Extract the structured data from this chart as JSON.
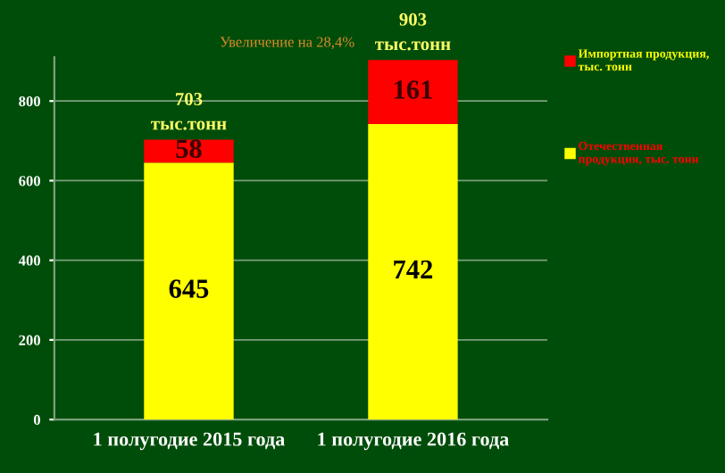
{
  "chart_data": {
    "type": "bar",
    "stacked": true,
    "categories": [
      "1 полугодие 2015 года",
      "1 полугодие 2016 года"
    ],
    "series": [
      {
        "name": "Отечественная продукция, тыс. тонн",
        "color": "#ffff00",
        "values": [
          645,
          742
        ]
      },
      {
        "name": "Импортная продукция, тыс. тонн",
        "color": "#ff0000",
        "values": [
          58,
          161
        ]
      }
    ],
    "data_labels": true,
    "totals": [
      "703\nтыс.тонн",
      "903\nтыс.тонн"
    ],
    "annotations": [
      "Увеличение на 28,4%"
    ],
    "ylim": [
      0,
      910
    ],
    "yticks": [
      0,
      200,
      400,
      600,
      800
    ],
    "grid": "y",
    "legend": "right"
  }
}
